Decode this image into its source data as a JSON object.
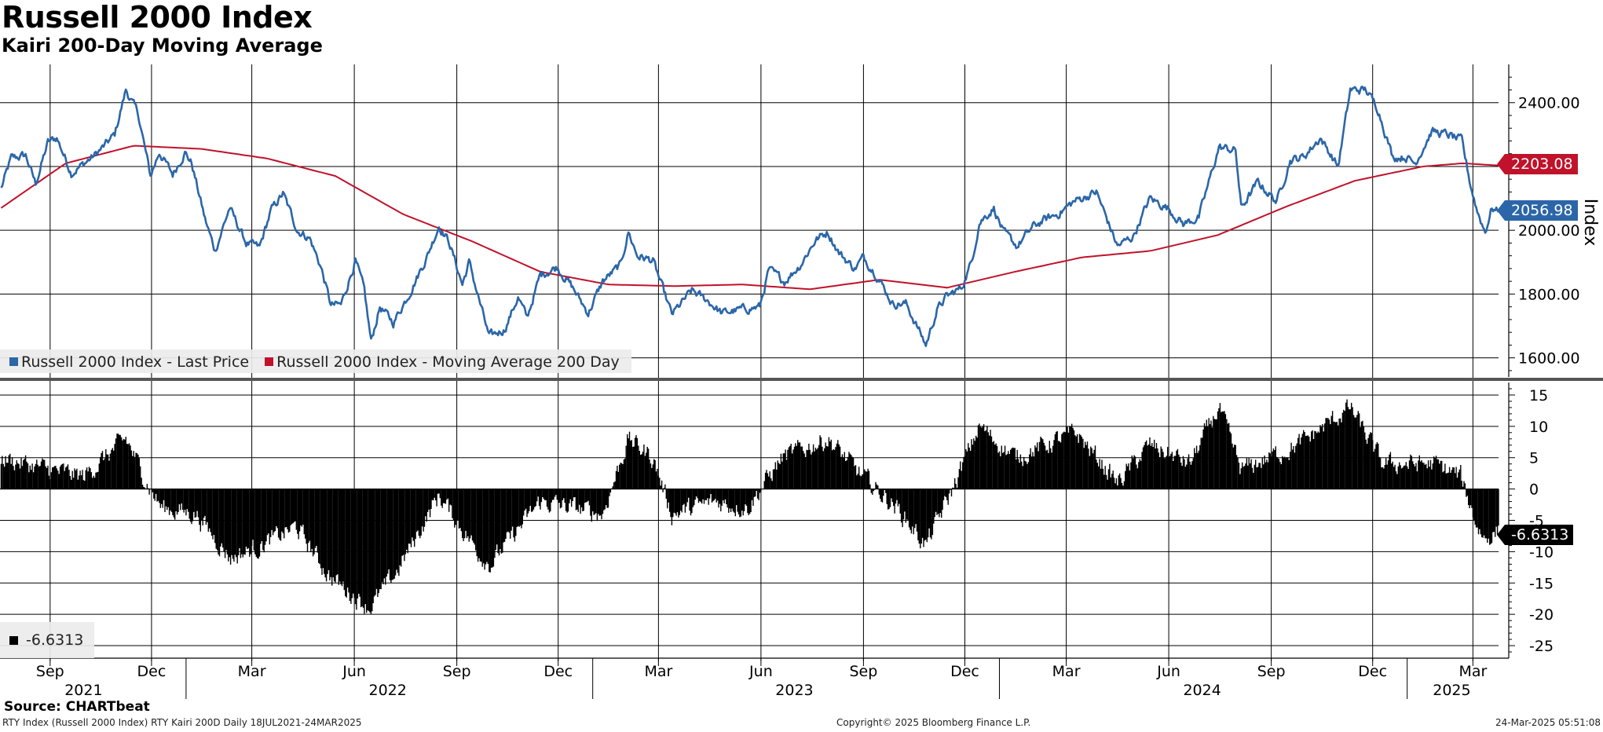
{
  "header": {
    "title": "Russell 2000 Index",
    "subtitle": "Kairi 200-Day Moving Average"
  },
  "footer": {
    "source": "Source: CHARTbeat",
    "security": "RTY Index (Russell 2000 Index) RTY Kairi 200D  Daily 18JUL2021-24MAR2025",
    "copyright": "Copyright© 2025 Bloomberg Finance L.P.",
    "timestamp": "24-Mar-2025 05:51:08"
  },
  "colors": {
    "price": "#2b66a8",
    "ma": "#c0122a",
    "kairi": "#000000",
    "grid": "#000000"
  },
  "chart_data": [
    {
      "type": "line",
      "title": "Russell 2000 Index",
      "ylabel": "Index",
      "ylim": [
        1540,
        2520
      ],
      "yticks": [
        1600,
        1800,
        2000,
        2400
      ],
      "ytick_labels": [
        "1600.00",
        "1800.00",
        "2000.00",
        "2400.00"
      ],
      "x_start": "2021-07-18",
      "x_end": "2025-03-24",
      "legend": [
        "Russell 2000 Index - Last Price",
        "Russell 2000 Index - Moving Average 200 Day"
      ],
      "series": [
        {
          "name": "Russell 2000 Index - Last Price",
          "points": [
            [
              "2021-07-19",
              2130
            ],
            [
              "2021-07-28",
              2225
            ],
            [
              "2021-08-10",
              2235
            ],
            [
              "2021-08-19",
              2145
            ],
            [
              "2021-08-30",
              2275
            ],
            [
              "2021-09-07",
              2290
            ],
            [
              "2021-09-20",
              2180
            ],
            [
              "2021-09-30",
              2205
            ],
            [
              "2021-10-11",
              2235
            ],
            [
              "2021-10-20",
              2265
            ],
            [
              "2021-10-29",
              2300
            ],
            [
              "2021-11-08",
              2440
            ],
            [
              "2021-11-19",
              2365
            ],
            [
              "2021-11-30",
              2170
            ],
            [
              "2021-12-08",
              2245
            ],
            [
              "2021-12-20",
              2175
            ],
            [
              "2021-12-31",
              2245
            ],
            [
              "2022-01-06",
              2210
            ],
            [
              "2022-01-18",
              2035
            ],
            [
              "2022-01-27",
              1935
            ],
            [
              "2022-02-09",
              2070
            ],
            [
              "2022-02-24",
              1960
            ],
            [
              "2022-03-08",
              1945
            ],
            [
              "2022-03-18",
              2060
            ],
            [
              "2022-03-29",
              2115
            ],
            [
              "2022-04-11",
              2000
            ],
            [
              "2022-04-22",
              1975
            ],
            [
              "2022-05-02",
              1885
            ],
            [
              "2022-05-11",
              1765
            ],
            [
              "2022-05-20",
              1765
            ],
            [
              "2022-06-02",
              1905
            ],
            [
              "2022-06-10",
              1810
            ],
            [
              "2022-06-16",
              1650
            ],
            [
              "2022-06-24",
              1760
            ],
            [
              "2022-07-06",
              1710
            ],
            [
              "2022-07-20",
              1800
            ],
            [
              "2022-08-05",
              1915
            ],
            [
              "2022-08-16",
              2015
            ],
            [
              "2022-08-25",
              1965
            ],
            [
              "2022-09-06",
              1830
            ],
            [
              "2022-09-12",
              1900
            ],
            [
              "2022-09-30",
              1665
            ],
            [
              "2022-10-14",
              1690
            ],
            [
              "2022-10-26",
              1790
            ],
            [
              "2022-11-03",
              1725
            ],
            [
              "2022-11-15",
              1860
            ],
            [
              "2022-11-30",
              1885
            ],
            [
              "2022-12-13",
              1825
            ],
            [
              "2022-12-28",
              1740
            ],
            [
              "2023-01-10",
              1840
            ],
            [
              "2023-01-26",
              1890
            ],
            [
              "2023-02-02",
              1995
            ],
            [
              "2023-02-10",
              1920
            ],
            [
              "2023-02-24",
              1905
            ],
            [
              "2023-03-13",
              1735
            ],
            [
              "2023-03-31",
              1810
            ],
            [
              "2023-04-14",
              1780
            ],
            [
              "2023-04-27",
              1740
            ],
            [
              "2023-05-12",
              1750
            ],
            [
              "2023-05-31",
              1760
            ],
            [
              "2023-06-08",
              1875
            ],
            [
              "2023-06-22",
              1840
            ],
            [
              "2023-07-06",
              1890
            ],
            [
              "2023-07-20",
              1970
            ],
            [
              "2023-07-31",
              1995
            ],
            [
              "2023-08-10",
              1930
            ],
            [
              "2023-08-24",
              1880
            ],
            [
              "2023-09-01",
              1915
            ],
            [
              "2023-09-13",
              1860
            ],
            [
              "2023-09-27",
              1770
            ],
            [
              "2023-10-09",
              1770
            ],
            [
              "2023-10-19",
              1700
            ],
            [
              "2023-10-27",
              1640
            ],
            [
              "2023-11-06",
              1750
            ],
            [
              "2023-11-14",
              1790
            ],
            [
              "2023-11-28",
              1820
            ],
            [
              "2023-12-07",
              1900
            ],
            [
              "2023-12-14",
              2025
            ],
            [
              "2023-12-27",
              2070
            ],
            [
              "2024-01-05",
              1990
            ],
            [
              "2024-01-17",
              1950
            ],
            [
              "2024-01-31",
              2010
            ],
            [
              "2024-02-09",
              2030
            ],
            [
              "2024-02-22",
              2050
            ],
            [
              "2024-03-08",
              2090
            ],
            [
              "2024-03-28",
              2120
            ],
            [
              "2024-04-16",
              1950
            ],
            [
              "2024-04-30",
              1980
            ],
            [
              "2024-05-15",
              2100
            ],
            [
              "2024-05-31",
              2070
            ],
            [
              "2024-06-14",
              2020
            ],
            [
              "2024-06-28",
              2040
            ],
            [
              "2024-07-16",
              2260
            ],
            [
              "2024-07-31",
              2250
            ],
            [
              "2024-08-05",
              2070
            ],
            [
              "2024-08-20",
              2150
            ],
            [
              "2024-09-06",
              2090
            ],
            [
              "2024-09-18",
              2220
            ],
            [
              "2024-09-30",
              2230
            ],
            [
              "2024-10-15",
              2290
            ],
            [
              "2024-10-31",
              2200
            ],
            [
              "2024-11-11",
              2440
            ],
            [
              "2024-11-25",
              2440
            ],
            [
              "2024-12-06",
              2380
            ],
            [
              "2024-12-19",
              2230
            ],
            [
              "2024-12-31",
              2230
            ],
            [
              "2025-01-08",
              2210
            ],
            [
              "2025-01-23",
              2310
            ],
            [
              "2025-02-06",
              2300
            ],
            [
              "2025-02-19",
              2280
            ],
            [
              "2025-02-27",
              2140
            ],
            [
              "2025-03-05",
              2060
            ],
            [
              "2025-03-12",
              1995
            ],
            [
              "2025-03-18",
              2070
            ],
            [
              "2025-03-24",
              2056.98
            ]
          ]
        },
        {
          "name": "Russell 2000 Index - Moving Average 200 Day",
          "points": [
            [
              "2021-07-19",
              2070
            ],
            [
              "2021-09-15",
              2210
            ],
            [
              "2021-11-15",
              2265
            ],
            [
              "2022-01-15",
              2255
            ],
            [
              "2022-03-15",
              2225
            ],
            [
              "2022-05-15",
              2170
            ],
            [
              "2022-07-15",
              2050
            ],
            [
              "2022-09-15",
              1965
            ],
            [
              "2022-11-15",
              1870
            ],
            [
              "2023-01-15",
              1830
            ],
            [
              "2023-03-15",
              1825
            ],
            [
              "2023-05-15",
              1830
            ],
            [
              "2023-07-15",
              1815
            ],
            [
              "2023-09-15",
              1845
            ],
            [
              "2023-11-15",
              1820
            ],
            [
              "2024-01-15",
              1870
            ],
            [
              "2024-03-15",
              1915
            ],
            [
              "2024-05-15",
              1935
            ],
            [
              "2024-07-15",
              1985
            ],
            [
              "2024-09-15",
              2075
            ],
            [
              "2024-11-15",
              2155
            ],
            [
              "2025-01-15",
              2200
            ],
            [
              "2025-02-20",
              2210
            ],
            [
              "2025-03-24",
              2203.08
            ]
          ]
        }
      ],
      "last_values": {
        "price": "2056.98",
        "ma": "2203.08"
      }
    },
    {
      "type": "bar",
      "title": "RTY Kairi 200D",
      "ylim": [
        -27,
        17
      ],
      "yticks": [
        15,
        10,
        5,
        0,
        -5,
        -10,
        -15,
        -20,
        -25
      ],
      "legend": [
        "-6.6313"
      ],
      "last_value": "-6.6313",
      "points": [
        [
          "2021-07-19",
          5
        ],
        [
          "2021-09-01",
          3
        ],
        [
          "2021-10-01",
          2
        ],
        [
          "2021-11-08",
          8
        ],
        [
          "2021-11-30",
          0
        ],
        [
          "2021-12-10",
          -3
        ],
        [
          "2022-01-10",
          -4
        ],
        [
          "2022-02-10",
          -11
        ],
        [
          "2022-03-10",
          -9
        ],
        [
          "2022-04-10",
          -6
        ],
        [
          "2022-05-10",
          -14
        ],
        [
          "2022-06-15",
          -19
        ],
        [
          "2022-07-10",
          -13
        ],
        [
          "2022-08-16",
          -1
        ],
        [
          "2022-09-20",
          -10
        ],
        [
          "2022-10-01",
          -12
        ],
        [
          "2022-11-15",
          -2
        ],
        [
          "2022-12-15",
          -3
        ],
        [
          "2023-01-10",
          -4
        ],
        [
          "2023-02-02",
          8
        ],
        [
          "2023-02-24",
          5
        ],
        [
          "2023-03-13",
          -4
        ],
        [
          "2023-04-20",
          -2
        ],
        [
          "2023-05-20",
          -3
        ],
        [
          "2023-06-20",
          5
        ],
        [
          "2023-07-31",
          8
        ],
        [
          "2023-08-31",
          2
        ],
        [
          "2023-10-01",
          -3
        ],
        [
          "2023-10-27",
          -9
        ],
        [
          "2023-11-20",
          0
        ],
        [
          "2023-12-14",
          10
        ],
        [
          "2024-01-15",
          5
        ],
        [
          "2024-03-10",
          9
        ],
        [
          "2024-04-16",
          1
        ],
        [
          "2024-05-15",
          7
        ],
        [
          "2024-06-20",
          4
        ],
        [
          "2024-07-16",
          13
        ],
        [
          "2024-08-05",
          3
        ],
        [
          "2024-09-25",
          7
        ],
        [
          "2024-11-11",
          13
        ],
        [
          "2024-12-10",
          4
        ],
        [
          "2025-01-25",
          4
        ],
        [
          "2025-02-18",
          2
        ],
        [
          "2025-03-05",
          -6
        ],
        [
          "2025-03-12",
          -8
        ],
        [
          "2025-03-24",
          -6.6313
        ]
      ]
    }
  ],
  "axes": {
    "months": [
      {
        "label": "Sep",
        "date": "2021-09-01"
      },
      {
        "label": "Dec",
        "date": "2021-12-01"
      },
      {
        "label": "Mar",
        "date": "2022-03-01"
      },
      {
        "label": "Jun",
        "date": "2022-06-01"
      },
      {
        "label": "Sep",
        "date": "2022-09-01"
      },
      {
        "label": "Dec",
        "date": "2022-12-01"
      },
      {
        "label": "Mar",
        "date": "2023-03-01"
      },
      {
        "label": "Jun",
        "date": "2023-06-01"
      },
      {
        "label": "Sep",
        "date": "2023-09-01"
      },
      {
        "label": "Dec",
        "date": "2023-12-01"
      },
      {
        "label": "Mar",
        "date": "2024-03-01"
      },
      {
        "label": "Jun",
        "date": "2024-06-01"
      },
      {
        "label": "Sep",
        "date": "2024-09-01"
      },
      {
        "label": "Dec",
        "date": "2024-12-01"
      },
      {
        "label": "Mar",
        "date": "2025-03-01"
      }
    ],
    "years": [
      {
        "label": "2021",
        "date": "2021-10-01"
      },
      {
        "label": "2022",
        "date": "2022-07-01"
      },
      {
        "label": "2023",
        "date": "2023-07-01"
      },
      {
        "label": "2024",
        "date": "2024-07-01"
      },
      {
        "label": "2025",
        "date": "2025-02-10"
      }
    ],
    "year_boundaries": [
      "2022-01-01",
      "2023-01-01",
      "2024-01-01",
      "2025-01-01"
    ]
  }
}
